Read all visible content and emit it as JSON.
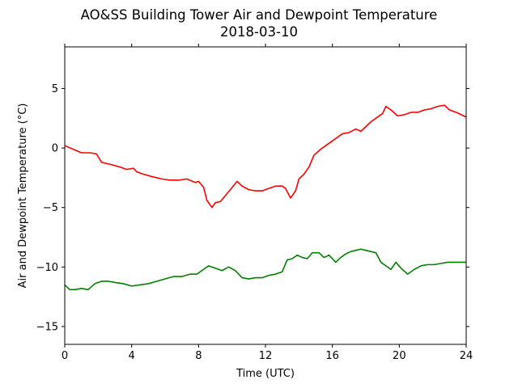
{
  "chart_data": {
    "type": "line",
    "title": "AO&SS Building Tower Air and Dewpoint Temperature",
    "subtitle": "2018-03-10",
    "xlabel": "Time (UTC)",
    "ylabel": "Air and Dewpoint Temperature (°C)",
    "xlim": [
      0,
      24
    ],
    "ylim": [
      -16.5,
      8.5
    ],
    "xticks": [
      0,
      4,
      8,
      12,
      16,
      20,
      24
    ],
    "xtick_labels": [
      "0",
      "4",
      "8",
      "12",
      "16",
      "20",
      "24"
    ],
    "yticks": [
      -15,
      -10,
      -5,
      0,
      5
    ],
    "ytick_labels": [
      "−15",
      "−10",
      "−5",
      "0",
      "5"
    ],
    "grid": false,
    "series": [
      {
        "color": "#ff0000",
        "x": [
          0,
          0.5,
          1.0,
          1.5,
          1.9,
          2.2,
          2.8,
          3.3,
          3.7,
          4.1,
          4.3,
          4.7,
          5.2,
          5.8,
          6.3,
          6.8,
          7.3,
          7.8,
          8.0,
          8.3,
          8.5,
          8.8,
          9.0,
          9.3,
          9.6,
          9.9,
          10.3,
          10.6,
          11.0,
          11.4,
          11.8,
          12.2,
          12.6,
          13.0,
          13.2,
          13.5,
          13.8,
          14.0,
          14.3,
          14.6,
          14.9,
          15.3,
          15.6,
          16.0,
          16.3,
          16.6,
          17.0,
          17.4,
          17.7,
          18.0,
          18.3,
          18.6,
          19.0,
          19.2,
          19.5,
          19.9,
          20.3,
          20.7,
          21.1,
          21.5,
          21.9,
          22.3,
          22.7,
          23.0,
          23.4,
          23.7,
          24.0
        ],
        "y": [
          0.2,
          -0.1,
          -0.4,
          -0.4,
          -0.5,
          -1.2,
          -1.4,
          -1.6,
          -1.8,
          -1.7,
          -2.0,
          -2.2,
          -2.4,
          -2.6,
          -2.7,
          -2.7,
          -2.6,
          -2.9,
          -2.8,
          -3.3,
          -4.4,
          -5.0,
          -4.6,
          -4.5,
          -4.0,
          -3.5,
          -2.8,
          -3.2,
          -3.5,
          -3.6,
          -3.6,
          -3.4,
          -3.2,
          -3.2,
          -3.4,
          -4.2,
          -3.6,
          -2.6,
          -2.2,
          -1.6,
          -0.6,
          -0.1,
          0.2,
          0.6,
          0.9,
          1.2,
          1.3,
          1.6,
          1.4,
          1.8,
          2.2,
          2.5,
          2.9,
          3.5,
          3.2,
          2.7,
          2.8,
          3.0,
          3.0,
          3.2,
          3.3,
          3.5,
          3.6,
          3.2,
          3.0,
          2.8,
          2.6
        ]
      },
      {
        "color": "#008000",
        "x": [
          0,
          0.3,
          0.6,
          1.0,
          1.4,
          1.8,
          2.2,
          2.6,
          3.0,
          3.5,
          4.0,
          4.5,
          5.0,
          5.5,
          6.0,
          6.5,
          7.0,
          7.5,
          7.9,
          8.3,
          8.6,
          9.0,
          9.4,
          9.8,
          10.2,
          10.6,
          11.0,
          11.4,
          11.8,
          12.2,
          12.6,
          13.0,
          13.3,
          13.6,
          13.9,
          14.2,
          14.5,
          14.8,
          15.2,
          15.5,
          15.8,
          16.2,
          16.5,
          16.8,
          17.1,
          17.4,
          17.7,
          18.0,
          18.3,
          18.6,
          18.9,
          19.2,
          19.5,
          19.8,
          20.1,
          20.5,
          20.9,
          21.3,
          21.7,
          22.1,
          22.5,
          22.9,
          23.3,
          23.7,
          24.0
        ],
        "y": [
          -11.5,
          -11.9,
          -11.9,
          -11.8,
          -11.9,
          -11.4,
          -11.2,
          -11.2,
          -11.3,
          -11.4,
          -11.6,
          -11.5,
          -11.4,
          -11.2,
          -11.0,
          -10.8,
          -10.8,
          -10.6,
          -10.6,
          -10.2,
          -9.9,
          -10.1,
          -10.3,
          -10.0,
          -10.3,
          -10.9,
          -11.0,
          -10.9,
          -10.9,
          -10.7,
          -10.6,
          -10.4,
          -9.4,
          -9.3,
          -9.0,
          -9.2,
          -9.3,
          -8.8,
          -8.8,
          -9.2,
          -9.0,
          -9.6,
          -9.2,
          -8.9,
          -8.7,
          -8.6,
          -8.5,
          -8.6,
          -8.7,
          -8.8,
          -9.6,
          -9.9,
          -10.2,
          -9.6,
          -10.1,
          -10.6,
          -10.2,
          -9.9,
          -9.8,
          -9.8,
          -9.7,
          -9.6,
          -9.6,
          -9.6,
          -9.6
        ]
      }
    ]
  }
}
